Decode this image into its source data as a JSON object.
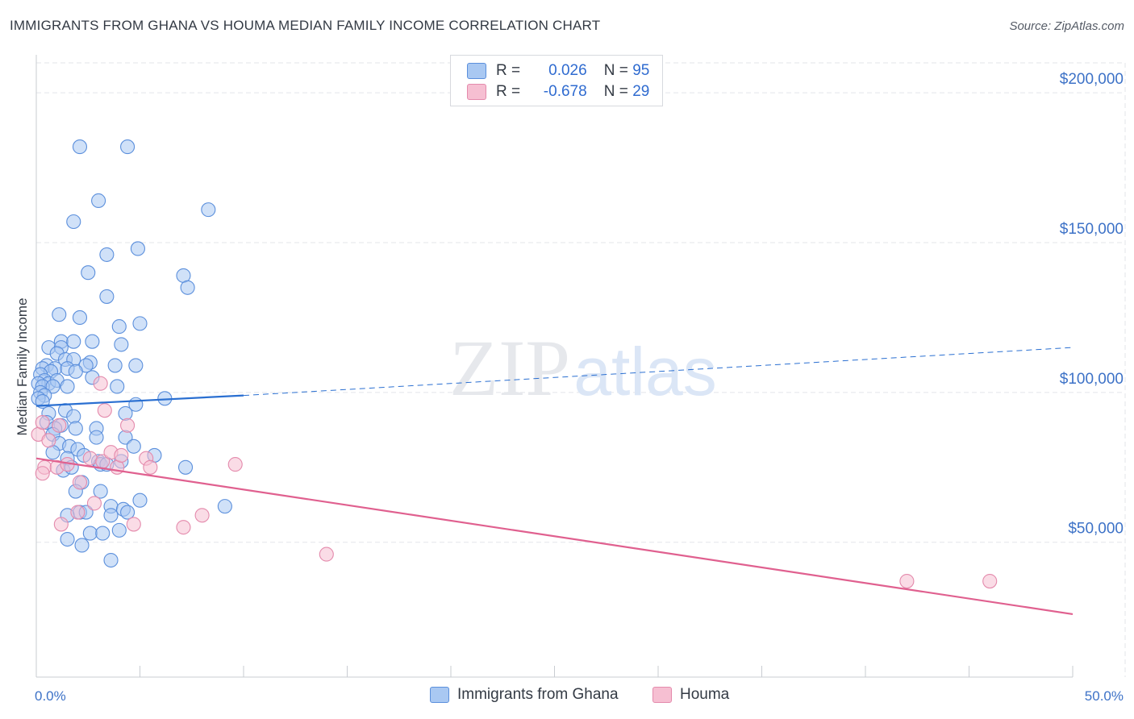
{
  "header": {
    "title": "IMMIGRANTS FROM GHANA VS HOUMA MEDIAN FAMILY INCOME CORRELATION CHART",
    "source": "Source: ZipAtlas.com"
  },
  "watermark": {
    "zip": "ZIP",
    "atlas": "atlas"
  },
  "legend": {
    "rows": [
      {
        "r_label": "R =",
        "r_value": "0.026",
        "n_label": "N =",
        "n_value": "95"
      },
      {
        "r_label": "R =",
        "r_value": "-0.678",
        "n_label": "N =",
        "n_value": "29"
      }
    ]
  },
  "bottom_legend": {
    "series1": "Immigrants from Ghana",
    "series2": "Houma"
  },
  "colors": {
    "ghana_fill": "#a9c8f2",
    "ghana_stroke": "#5b8fdc",
    "ghana_line": "#2a6fd1",
    "houma_fill": "#f6bfd2",
    "houma_stroke": "#e48aac",
    "houma_line": "#e0608f",
    "tick_text": "#3d72c7",
    "grid": "#e3e5ea"
  },
  "chart_data": {
    "type": "scatter",
    "title": "IMMIGRANTS FROM GHANA VS HOUMA MEDIAN FAMILY INCOME CORRELATION CHART",
    "xlabel": "",
    "ylabel": "Median Family Income",
    "xlim": [
      0,
      50
    ],
    "ylim": [
      5000,
      210000
    ],
    "x_ticks": [
      "0.0%",
      "50.0%"
    ],
    "y_ticks": [
      {
        "value": 50000,
        "label": "$50,000"
      },
      {
        "value": 100000,
        "label": "$100,000"
      },
      {
        "value": 150000,
        "label": "$150,000"
      },
      {
        "value": 200000,
        "label": "$200,000"
      }
    ],
    "series": [
      {
        "name": "Immigrants from Ghana",
        "R": 0.026,
        "N": 95,
        "trend": {
          "solid": [
            [
              0,
              95500
            ],
            [
              10,
              99000
            ]
          ],
          "dashed": [
            [
              10,
              99000
            ],
            [
              50,
              115000
            ]
          ]
        },
        "points": [
          [
            2.1,
            182000
          ],
          [
            4.4,
            182000
          ],
          [
            3.0,
            164000
          ],
          [
            8.3,
            161000
          ],
          [
            1.8,
            157000
          ],
          [
            4.9,
            148000
          ],
          [
            3.4,
            146000
          ],
          [
            2.5,
            140000
          ],
          [
            7.1,
            139000
          ],
          [
            7.3,
            135000
          ],
          [
            3.4,
            132000
          ],
          [
            1.1,
            126000
          ],
          [
            2.1,
            125000
          ],
          [
            4.0,
            122000
          ],
          [
            5.0,
            123000
          ],
          [
            1.2,
            117000
          ],
          [
            1.8,
            117000
          ],
          [
            2.7,
            117000
          ],
          [
            4.1,
            116000
          ],
          [
            0.6,
            115000
          ],
          [
            1.2,
            115000
          ],
          [
            1.0,
            113000
          ],
          [
            1.4,
            111000
          ],
          [
            1.8,
            111000
          ],
          [
            2.6,
            110000
          ],
          [
            0.5,
            109000
          ],
          [
            2.4,
            109000
          ],
          [
            3.8,
            109000
          ],
          [
            4.8,
            109000
          ],
          [
            0.3,
            108000
          ],
          [
            0.9,
            108000
          ],
          [
            1.5,
            108000
          ],
          [
            0.7,
            107000
          ],
          [
            0.2,
            106000
          ],
          [
            1.9,
            107000
          ],
          [
            2.7,
            105000
          ],
          [
            0.4,
            104000
          ],
          [
            0.6,
            103000
          ],
          [
            1.0,
            104000
          ],
          [
            0.1,
            103000
          ],
          [
            0.3,
            102000
          ],
          [
            0.8,
            102000
          ],
          [
            1.5,
            102000
          ],
          [
            3.9,
            102000
          ],
          [
            0.2,
            100000
          ],
          [
            0.4,
            99000
          ],
          [
            0.1,
            98000
          ],
          [
            0.3,
            97000
          ],
          [
            6.2,
            98000
          ],
          [
            4.8,
            96000
          ],
          [
            1.4,
            94000
          ],
          [
            0.6,
            93000
          ],
          [
            4.3,
            93000
          ],
          [
            1.8,
            92000
          ],
          [
            0.5,
            90000
          ],
          [
            1.2,
            89000
          ],
          [
            0.9,
            88000
          ],
          [
            1.9,
            88000
          ],
          [
            2.9,
            88000
          ],
          [
            0.8,
            86000
          ],
          [
            2.9,
            85000
          ],
          [
            4.3,
            85000
          ],
          [
            1.1,
            83000
          ],
          [
            1.6,
            82000
          ],
          [
            2.0,
            81000
          ],
          [
            4.7,
            82000
          ],
          [
            0.8,
            80000
          ],
          [
            2.3,
            79000
          ],
          [
            5.7,
            79000
          ],
          [
            1.5,
            78000
          ],
          [
            3.0,
            77000
          ],
          [
            3.1,
            76000
          ],
          [
            3.4,
            76000
          ],
          [
            4.1,
            77000
          ],
          [
            7.2,
            75000
          ],
          [
            1.3,
            74000
          ],
          [
            1.7,
            75000
          ],
          [
            2.2,
            70000
          ],
          [
            1.9,
            67000
          ],
          [
            3.1,
            67000
          ],
          [
            3.6,
            62000
          ],
          [
            4.2,
            61000
          ],
          [
            2.1,
            60000
          ],
          [
            1.5,
            59000
          ],
          [
            2.4,
            60000
          ],
          [
            3.6,
            59000
          ],
          [
            4.4,
            60000
          ],
          [
            5.0,
            64000
          ],
          [
            9.1,
            62000
          ],
          [
            2.6,
            53000
          ],
          [
            3.2,
            53000
          ],
          [
            1.5,
            51000
          ],
          [
            4.0,
            54000
          ],
          [
            2.2,
            49000
          ],
          [
            3.6,
            44000
          ]
        ]
      },
      {
        "name": "Houma",
        "R": -0.678,
        "N": 29,
        "trend": {
          "solid": [
            [
              0,
              78000
            ],
            [
              50,
              26000
            ]
          ]
        },
        "points": [
          [
            0.1,
            86000
          ],
          [
            0.3,
            90000
          ],
          [
            1.1,
            89000
          ],
          [
            0.6,
            84000
          ],
          [
            3.1,
            103000
          ],
          [
            3.3,
            94000
          ],
          [
            4.4,
            89000
          ],
          [
            0.4,
            75000
          ],
          [
            1.0,
            75000
          ],
          [
            1.5,
            76000
          ],
          [
            2.1,
            70000
          ],
          [
            2.6,
            78000
          ],
          [
            3.2,
            77000
          ],
          [
            3.6,
            80000
          ],
          [
            3.9,
            75000
          ],
          [
            4.1,
            79000
          ],
          [
            5.3,
            78000
          ],
          [
            5.5,
            75000
          ],
          [
            9.6,
            76000
          ],
          [
            0.3,
            73000
          ],
          [
            2.0,
            60000
          ],
          [
            2.8,
            63000
          ],
          [
            1.2,
            56000
          ],
          [
            4.7,
            56000
          ],
          [
            7.1,
            55000
          ],
          [
            8.0,
            59000
          ],
          [
            14.0,
            46000
          ],
          [
            42.0,
            37000
          ],
          [
            46.0,
            37000
          ]
        ]
      }
    ]
  }
}
